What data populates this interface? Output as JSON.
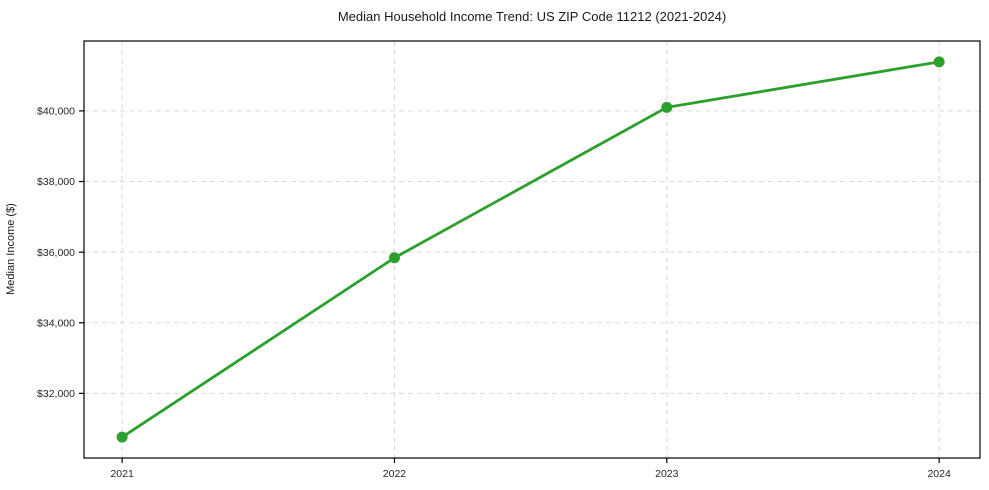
{
  "chart_data": {
    "type": "line",
    "title": "Median Household Income Trend: US ZIP Code 11212 (2021-2024)",
    "xlabel": "",
    "ylabel": "Median Income ($)",
    "x": [
      2021,
      2022,
      2023,
      2024
    ],
    "values": [
      30760,
      35840,
      40100,
      41390
    ],
    "xticks": [
      2021,
      2022,
      2023,
      2024
    ],
    "xtick_labels": [
      "2021",
      "2022",
      "2023",
      "2024"
    ],
    "yticks": [
      32000,
      34000,
      36000,
      38000,
      40000
    ],
    "ytick_labels": [
      "$32,000",
      "$34,000",
      "$36,000",
      "$38,000",
      "$40,000"
    ],
    "xlim": [
      2020.86,
      2024.15
    ],
    "ylim": [
      30170,
      41980
    ],
    "grid": true,
    "grid_style": "dashed",
    "grid_color": "#d9d9d9",
    "line_color": "#2ca02c",
    "marker": "circle",
    "marker_size": 11,
    "legend": "none",
    "background_color": "#ffffff"
  }
}
